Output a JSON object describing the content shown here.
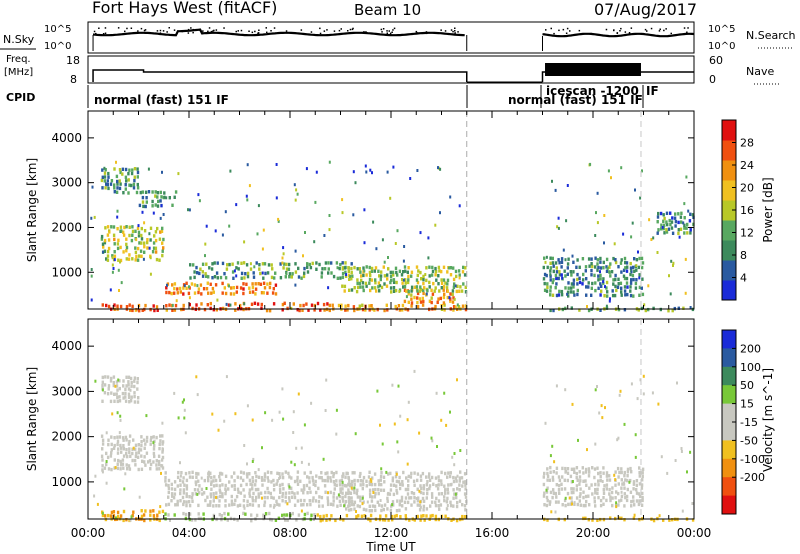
{
  "header": {
    "station": "Fort Hays West (fitACF)",
    "beam": "Beam 10",
    "date": "07/Aug/2017"
  },
  "top_panels": {
    "nsky_label": "N.Sky",
    "nsearch_label": "N.Search",
    "noise_ticks": [
      "10^5",
      "10^0"
    ],
    "freq_label_line1": "Freq.",
    "freq_label_line2": "[MHz]",
    "freq_ticks": [
      "18",
      "8"
    ],
    "nave_label": "Nave",
    "nave_ticks": [
      "60",
      "0"
    ],
    "cpid_label": "CPID",
    "cpid_segments": [
      "normal (fast) 151 IF",
      "normal (fast) 151 IF",
      "icescan -1200",
      "IF"
    ]
  },
  "colors": {
    "power_scale": [
      "#1a2bd8",
      "#2a5aa0",
      "#3c8a5c",
      "#58a860",
      "#b8c828",
      "#f0c020",
      "#f09010",
      "#f05010",
      "#e01010"
    ],
    "velocity_scale": [
      "#e01010",
      "#f05010",
      "#f09010",
      "#f0c020",
      "#c8c8c0",
      "#c8c8c0",
      "#78c838",
      "#3c8a5c",
      "#2a5aa0",
      "#1a2bd8"
    ]
  },
  "chart_data": [
    {
      "type": "heatmap",
      "name": "power",
      "xlabel": "",
      "ylabel": "Slant Range [km]",
      "xlim": [
        0,
        24
      ],
      "ylim": [
        180,
        4600
      ],
      "yticks": [
        1000,
        2000,
        3000,
        4000
      ],
      "xticks": [
        "00:00",
        "04:00",
        "08:00",
        "12:00",
        "16:00",
        "20:00",
        "00:00"
      ],
      "colorbar": {
        "label": "Power [dB]",
        "range": [
          0,
          32
        ],
        "ticks": [
          4,
          8,
          12,
          16,
          20,
          24,
          28
        ]
      },
      "data_gap_hours": [
        15.0,
        18.0
      ],
      "regions": [
        {
          "t": [
            0.5,
            3.5
          ],
          "r": [
            180,
            350
          ],
          "level": 26
        },
        {
          "t": [
            3.5,
            9.5
          ],
          "r": [
            180,
            400
          ],
          "level": 27
        },
        {
          "t": [
            9.5,
            15.0
          ],
          "r": [
            180,
            350
          ],
          "level": 22
        },
        {
          "t": [
            3.0,
            7.5
          ],
          "r": [
            550,
            850
          ],
          "level": 24
        },
        {
          "t": [
            12.5,
            14.5
          ],
          "r": [
            350,
            700
          ],
          "level": 22
        },
        {
          "t": [
            0.5,
            3.0
          ],
          "r": [
            1300,
            2100
          ],
          "level": 16
        },
        {
          "t": [
            0.5,
            2.0
          ],
          "r": [
            2800,
            3400
          ],
          "level": 10
        },
        {
          "t": [
            2.0,
            3.5
          ],
          "r": [
            2500,
            2900
          ],
          "level": 10
        },
        {
          "t": [
            4.0,
            10.5
          ],
          "r": [
            900,
            1300
          ],
          "level": 10
        },
        {
          "t": [
            10.0,
            15.0
          ],
          "r": [
            600,
            1200
          ],
          "level": 14
        },
        {
          "t": [
            18.0,
            22.0
          ],
          "r": [
            500,
            1400
          ],
          "level": 9
        },
        {
          "t": [
            18.0,
            24.0
          ],
          "r": [
            180,
            300
          ],
          "level": 12
        },
        {
          "t": [
            22.5,
            24.0
          ],
          "r": [
            1900,
            2400
          ],
          "level": 9
        }
      ]
    },
    {
      "type": "heatmap",
      "name": "velocity",
      "xlabel": "Time UT",
      "ylabel": "Slant Range [km]",
      "xlim": [
        0,
        24
      ],
      "ylim": [
        180,
        4600
      ],
      "yticks": [
        1000,
        2000,
        3000,
        4000
      ],
      "xticks": [
        "00:00",
        "04:00",
        "08:00",
        "12:00",
        "16:00",
        "20:00",
        "00:00"
      ],
      "colorbar": {
        "label": "Velocity [m s^-1]",
        "ticks": [
          -200,
          -100,
          -50,
          -15,
          15,
          50,
          100,
          200
        ]
      },
      "data_gap_hours": [
        15.0,
        18.0
      ],
      "regions": [
        {
          "t": [
            0.5,
            3.0
          ],
          "r": [
            180,
            450
          ],
          "level": -50
        },
        {
          "t": [
            3.0,
            9.0
          ],
          "r": [
            180,
            400
          ],
          "level": 10
        },
        {
          "t": [
            9.0,
            15.0
          ],
          "r": [
            180,
            350
          ],
          "level": -30
        },
        {
          "t": [
            3.0,
            10.5
          ],
          "r": [
            500,
            1300
          ],
          "level": 0
        },
        {
          "t": [
            10.0,
            15.0
          ],
          "r": [
            400,
            1300
          ],
          "level": 0
        },
        {
          "t": [
            0.5,
            3.0
          ],
          "r": [
            1300,
            2100
          ],
          "level": 0
        },
        {
          "t": [
            0.5,
            2.0
          ],
          "r": [
            2800,
            3400
          ],
          "level": 0
        },
        {
          "t": [
            18.0,
            22.0
          ],
          "r": [
            500,
            1400
          ],
          "level": 0
        },
        {
          "t": [
            18.0,
            24.0
          ],
          "r": [
            180,
            300
          ],
          "level": -30
        }
      ]
    }
  ]
}
